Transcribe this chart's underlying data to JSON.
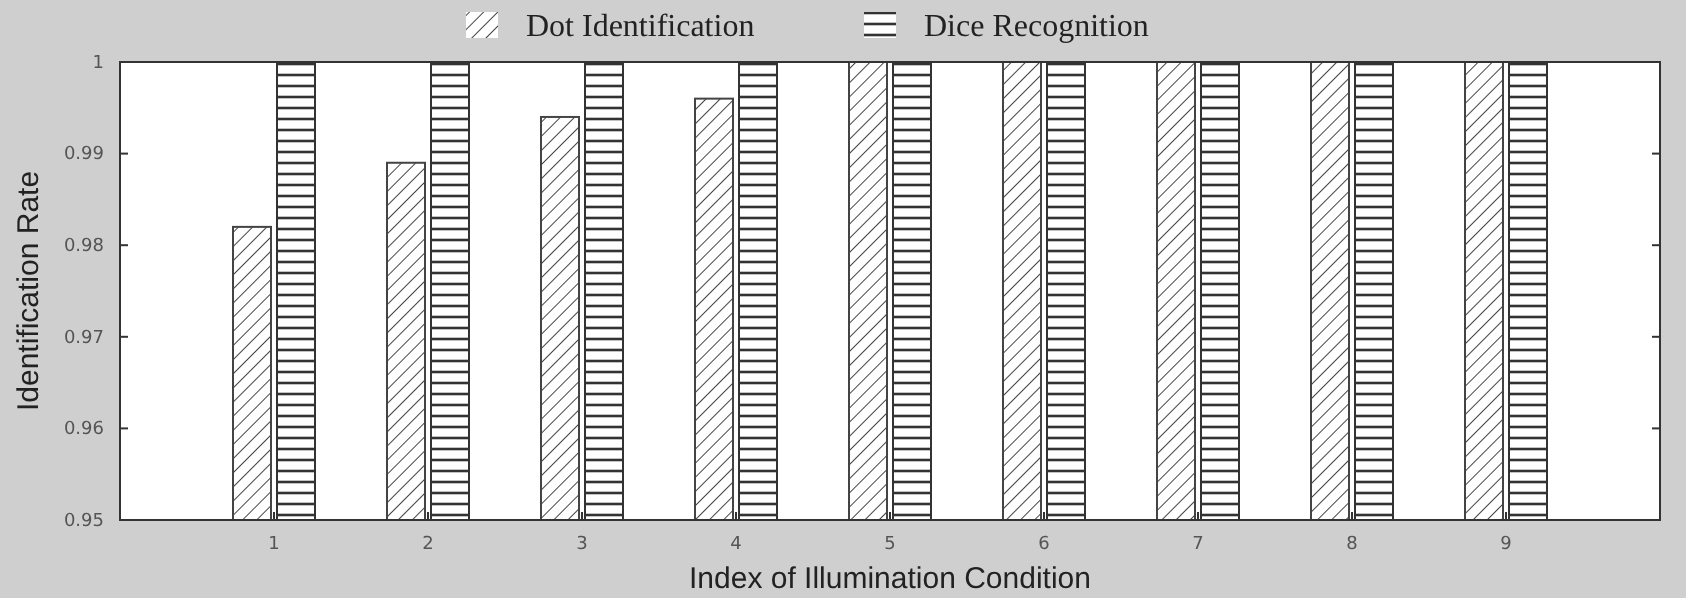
{
  "chart_data": {
    "type": "bar",
    "xlabel": "Index of Illumination Condition",
    "ylabel": "Identification Rate",
    "categories": [
      "1",
      "2",
      "3",
      "4",
      "5",
      "6",
      "7",
      "8",
      "9"
    ],
    "series": [
      {
        "name": "Dot Identification",
        "color": "#444444",
        "values": [
          0.982,
          0.989,
          0.994,
          0.996,
          1,
          1,
          1,
          1,
          1
        ]
      },
      {
        "name": "Dice Recognition",
        "color": "#333333",
        "values": [
          1,
          1,
          1,
          1,
          1,
          1,
          1,
          1,
          1
        ]
      }
    ],
    "ylim": [
      0.95,
      1
    ],
    "yticks": [
      0.95,
      0.96,
      0.97,
      0.98,
      0.99,
      1
    ],
    "legend": "top",
    "grid": false
  }
}
